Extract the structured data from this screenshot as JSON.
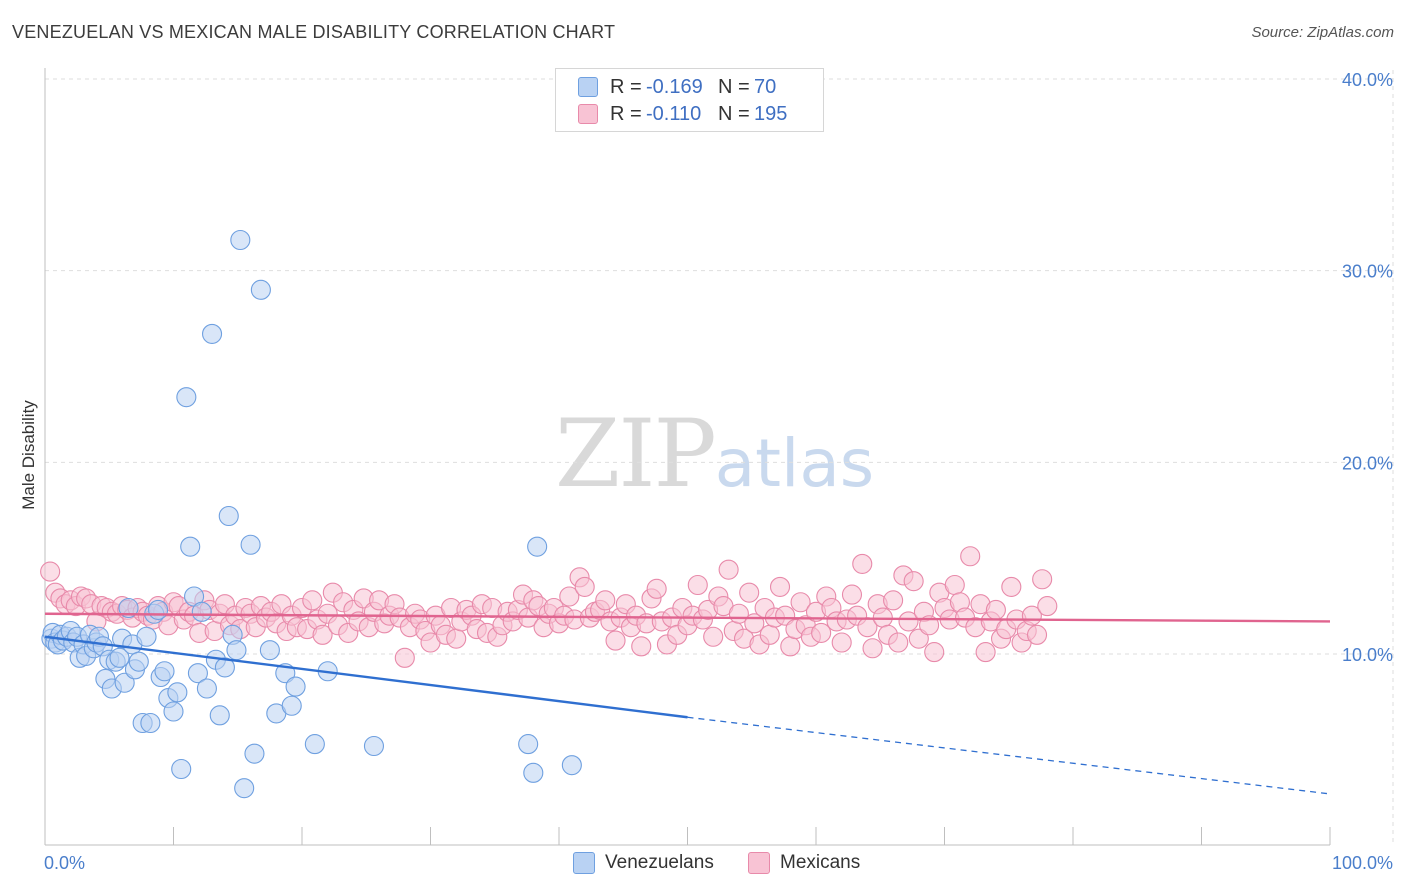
{
  "title": "VENEZUELAN VS MEXICAN MALE DISABILITY CORRELATION CHART",
  "source": "Source: ZipAtlas.com",
  "watermark": {
    "zip": "ZIP",
    "atlas": "atlas"
  },
  "legend": {
    "rows": [
      {
        "series": "Venezuelans",
        "r_label": "R =",
        "r_value": "-0.169",
        "n_label": "N =",
        "n_value": "70",
        "color": "#6fa0e0",
        "fill": "#b9d2f3"
      },
      {
        "series": "Mexicans",
        "r_label": "R =",
        "r_value": "-0.110",
        "n_label": "N =",
        "n_value": "195",
        "color": "#e88aaa",
        "fill": "#f8c3d4"
      }
    ]
  },
  "bottom_legend": [
    "Venezuelans",
    "Mexicans"
  ],
  "chart_data": {
    "type": "scatter",
    "title": "VENEZUELAN VS MEXICAN MALE DISABILITY CORRELATION CHART",
    "xlabel": "",
    "ylabel": "Male Disability",
    "xlim": [
      0,
      100
    ],
    "ylim": [
      0,
      40
    ],
    "y_ticks": [
      {
        "value": 10,
        "label": "10.0%"
      },
      {
        "value": 20,
        "label": "20.0%"
      },
      {
        "value": 30,
        "label": "30.0%"
      },
      {
        "value": 40,
        "label": "40.0%"
      }
    ],
    "x_tick_labels": [
      {
        "value": 0,
        "label": "0.0%"
      },
      {
        "value": 100,
        "label": "100.0%"
      }
    ],
    "grid": true,
    "legend_position": "top-center",
    "series": [
      {
        "name": "Venezuelans",
        "color": "#6fa0e0",
        "fill": "#b9d2f3",
        "trend": {
          "x0": 0,
          "y0": 10.9,
          "x1": 50,
          "y1": 6.7,
          "dash_to_x": 100,
          "dash_to_y": 2.7,
          "color": "#2f6fd0"
        },
        "points": [
          [
            0.5,
            10.8
          ],
          [
            0.6,
            11.1
          ],
          [
            0.8,
            10.6
          ],
          [
            1.0,
            10.5
          ],
          [
            1.2,
            11.0
          ],
          [
            1.4,
            10.7
          ],
          [
            1.7,
            10.9
          ],
          [
            2.0,
            11.2
          ],
          [
            2.2,
            10.6
          ],
          [
            2.5,
            10.9
          ],
          [
            2.7,
            9.8
          ],
          [
            3.0,
            10.5
          ],
          [
            3.2,
            9.9
          ],
          [
            3.5,
            11.0
          ],
          [
            3.8,
            10.3
          ],
          [
            4.0,
            10.6
          ],
          [
            4.2,
            10.9
          ],
          [
            4.5,
            10.4
          ],
          [
            4.7,
            8.7
          ],
          [
            5.0,
            9.7
          ],
          [
            5.2,
            8.2
          ],
          [
            5.5,
            9.6
          ],
          [
            5.8,
            9.8
          ],
          [
            6.0,
            10.8
          ],
          [
            6.2,
            8.5
          ],
          [
            6.5,
            12.4
          ],
          [
            6.8,
            10.5
          ],
          [
            7.0,
            9.2
          ],
          [
            7.3,
            9.6
          ],
          [
            7.6,
            6.4
          ],
          [
            7.9,
            10.9
          ],
          [
            8.2,
            6.4
          ],
          [
            8.5,
            12.1
          ],
          [
            8.8,
            12.3
          ],
          [
            9.0,
            8.8
          ],
          [
            9.3,
            9.1
          ],
          [
            9.6,
            7.7
          ],
          [
            10.0,
            7.0
          ],
          [
            10.3,
            8.0
          ],
          [
            10.6,
            4.0
          ],
          [
            11.0,
            23.4
          ],
          [
            11.3,
            15.6
          ],
          [
            11.6,
            13.0
          ],
          [
            11.9,
            9.0
          ],
          [
            12.2,
            12.2
          ],
          [
            12.6,
            8.2
          ],
          [
            13.0,
            26.7
          ],
          [
            13.3,
            9.7
          ],
          [
            13.6,
            6.8
          ],
          [
            14.0,
            9.3
          ],
          [
            14.3,
            17.2
          ],
          [
            14.6,
            11.0
          ],
          [
            14.9,
            10.2
          ],
          [
            15.2,
            31.6
          ],
          [
            15.5,
            3.0
          ],
          [
            16.0,
            15.7
          ],
          [
            16.3,
            4.8
          ],
          [
            16.8,
            29.0
          ],
          [
            17.5,
            10.2
          ],
          [
            18.0,
            6.9
          ],
          [
            18.7,
            9.0
          ],
          [
            19.2,
            7.3
          ],
          [
            19.5,
            8.3
          ],
          [
            21.0,
            5.3
          ],
          [
            22.0,
            9.1
          ],
          [
            25.6,
            5.2
          ],
          [
            37.6,
            5.3
          ],
          [
            38.0,
            3.8
          ],
          [
            38.3,
            15.6
          ],
          [
            41.0,
            4.2
          ]
        ]
      },
      {
        "name": "Mexicans",
        "color": "#e88aaa",
        "fill": "#f8c3d4",
        "trend": {
          "x0": 0,
          "y0": 12.1,
          "x1": 100,
          "y1": 11.7,
          "color": "#e0648f"
        },
        "points": [
          [
            0.4,
            14.3
          ],
          [
            0.8,
            13.2
          ],
          [
            1.2,
            12.9
          ],
          [
            1.6,
            12.6
          ],
          [
            2.0,
            12.8
          ],
          [
            2.4,
            12.5
          ],
          [
            2.8,
            13.0
          ],
          [
            3.2,
            12.9
          ],
          [
            3.6,
            12.6
          ],
          [
            4.0,
            11.7
          ],
          [
            4.4,
            12.5
          ],
          [
            4.8,
            12.4
          ],
          [
            5.2,
            12.2
          ],
          [
            5.6,
            12.1
          ],
          [
            6.0,
            12.5
          ],
          [
            6.4,
            12.3
          ],
          [
            6.8,
            11.9
          ],
          [
            7.2,
            12.4
          ],
          [
            7.6,
            12.2
          ],
          [
            8.0,
            12.0
          ],
          [
            8.4,
            11.8
          ],
          [
            8.8,
            12.5
          ],
          [
            9.2,
            12.2
          ],
          [
            9.6,
            11.5
          ],
          [
            10.0,
            12.7
          ],
          [
            10.4,
            12.5
          ],
          [
            10.8,
            11.8
          ],
          [
            11.2,
            12.2
          ],
          [
            11.6,
            12.0
          ],
          [
            12.0,
            11.1
          ],
          [
            12.4,
            12.8
          ],
          [
            12.8,
            12.3
          ],
          [
            13.2,
            11.2
          ],
          [
            13.6,
            12.1
          ],
          [
            14.0,
            12.6
          ],
          [
            14.4,
            11.5
          ],
          [
            14.8,
            12.0
          ],
          [
            15.2,
            11.3
          ],
          [
            15.6,
            12.4
          ],
          [
            16.0,
            12.1
          ],
          [
            16.4,
            11.4
          ],
          [
            16.8,
            12.5
          ],
          [
            17.2,
            11.9
          ],
          [
            17.6,
            12.2
          ],
          [
            18.0,
            11.6
          ],
          [
            18.4,
            12.6
          ],
          [
            18.8,
            11.2
          ],
          [
            19.2,
            12.0
          ],
          [
            19.6,
            11.4
          ],
          [
            20.0,
            12.4
          ],
          [
            20.4,
            11.3
          ],
          [
            20.8,
            12.8
          ],
          [
            21.2,
            11.8
          ],
          [
            21.6,
            11.0
          ],
          [
            22.0,
            12.1
          ],
          [
            22.4,
            13.2
          ],
          [
            22.8,
            11.5
          ],
          [
            23.2,
            12.7
          ],
          [
            23.6,
            11.1
          ],
          [
            24.0,
            12.3
          ],
          [
            24.4,
            11.7
          ],
          [
            24.8,
            12.9
          ],
          [
            25.2,
            11.4
          ],
          [
            25.6,
            12.2
          ],
          [
            26.0,
            12.8
          ],
          [
            26.4,
            11.6
          ],
          [
            26.8,
            12.0
          ],
          [
            27.2,
            12.6
          ],
          [
            27.6,
            11.9
          ],
          [
            28.0,
            9.8
          ],
          [
            28.4,
            11.4
          ],
          [
            28.8,
            12.1
          ],
          [
            29.2,
            11.8
          ],
          [
            29.6,
            11.2
          ],
          [
            30.0,
            10.6
          ],
          [
            30.4,
            12.0
          ],
          [
            30.8,
            11.5
          ],
          [
            31.2,
            11.0
          ],
          [
            31.6,
            12.4
          ],
          [
            32.0,
            10.8
          ],
          [
            32.4,
            11.7
          ],
          [
            32.8,
            12.3
          ],
          [
            33.2,
            12.0
          ],
          [
            33.6,
            11.3
          ],
          [
            34.0,
            12.6
          ],
          [
            34.4,
            11.1
          ],
          [
            34.8,
            12.4
          ],
          [
            35.2,
            10.9
          ],
          [
            35.6,
            11.5
          ],
          [
            36.0,
            12.2
          ],
          [
            36.4,
            11.7
          ],
          [
            36.8,
            12.3
          ],
          [
            37.2,
            13.1
          ],
          [
            37.6,
            11.9
          ],
          [
            38.0,
            12.8
          ],
          [
            38.4,
            12.5
          ],
          [
            38.8,
            11.4
          ],
          [
            39.2,
            12.1
          ],
          [
            39.6,
            12.4
          ],
          [
            40.0,
            11.6
          ],
          [
            40.4,
            12.0
          ],
          [
            40.8,
            13.0
          ],
          [
            41.2,
            11.8
          ],
          [
            41.6,
            14.0
          ],
          [
            42.0,
            13.5
          ],
          [
            42.4,
            11.9
          ],
          [
            42.8,
            12.2
          ],
          [
            43.2,
            12.3
          ],
          [
            43.6,
            12.8
          ],
          [
            44.0,
            11.7
          ],
          [
            44.4,
            10.7
          ],
          [
            44.8,
            11.9
          ],
          [
            45.2,
            12.6
          ],
          [
            45.6,
            11.4
          ],
          [
            46.0,
            12.0
          ],
          [
            46.4,
            10.4
          ],
          [
            46.8,
            11.6
          ],
          [
            47.2,
            12.9
          ],
          [
            47.6,
            13.4
          ],
          [
            48.0,
            11.7
          ],
          [
            48.4,
            10.5
          ],
          [
            48.8,
            11.9
          ],
          [
            49.2,
            11.0
          ],
          [
            49.6,
            12.4
          ],
          [
            50.0,
            11.5
          ],
          [
            50.4,
            12.0
          ],
          [
            50.8,
            13.6
          ],
          [
            51.2,
            11.8
          ],
          [
            51.6,
            12.3
          ],
          [
            52.0,
            10.9
          ],
          [
            52.4,
            13.0
          ],
          [
            52.8,
            12.5
          ],
          [
            53.2,
            14.4
          ],
          [
            53.6,
            11.2
          ],
          [
            54.0,
            12.1
          ],
          [
            54.4,
            10.8
          ],
          [
            54.8,
            13.2
          ],
          [
            55.2,
            11.6
          ],
          [
            55.6,
            10.5
          ],
          [
            56.0,
            12.4
          ],
          [
            56.4,
            11.0
          ],
          [
            56.8,
            11.9
          ],
          [
            57.2,
            13.5
          ],
          [
            57.6,
            12.0
          ],
          [
            58.0,
            10.4
          ],
          [
            58.4,
            11.3
          ],
          [
            58.8,
            12.7
          ],
          [
            59.2,
            11.5
          ],
          [
            59.6,
            10.9
          ],
          [
            60.0,
            12.2
          ],
          [
            60.4,
            11.1
          ],
          [
            60.8,
            13.0
          ],
          [
            61.2,
            12.4
          ],
          [
            61.6,
            11.7
          ],
          [
            62.0,
            10.6
          ],
          [
            62.4,
            11.8
          ],
          [
            62.8,
            13.1
          ],
          [
            63.2,
            12.0
          ],
          [
            63.6,
            14.7
          ],
          [
            64.0,
            11.4
          ],
          [
            64.4,
            10.3
          ],
          [
            64.8,
            12.6
          ],
          [
            65.2,
            11.9
          ],
          [
            65.6,
            11.0
          ],
          [
            66.0,
            12.8
          ],
          [
            66.4,
            10.6
          ],
          [
            66.8,
            14.1
          ],
          [
            67.2,
            11.7
          ],
          [
            67.6,
            13.8
          ],
          [
            68.0,
            10.8
          ],
          [
            68.4,
            12.2
          ],
          [
            68.8,
            11.5
          ],
          [
            69.2,
            10.1
          ],
          [
            69.6,
            13.2
          ],
          [
            70.0,
            12.4
          ],
          [
            70.4,
            11.8
          ],
          [
            70.8,
            13.6
          ],
          [
            71.2,
            12.7
          ],
          [
            71.6,
            11.9
          ],
          [
            72.0,
            15.1
          ],
          [
            72.4,
            11.4
          ],
          [
            72.8,
            12.6
          ],
          [
            73.2,
            10.1
          ],
          [
            73.6,
            11.7
          ],
          [
            74.0,
            12.3
          ],
          [
            74.4,
            10.8
          ],
          [
            74.8,
            11.3
          ],
          [
            75.2,
            13.5
          ],
          [
            75.6,
            11.8
          ],
          [
            76.0,
            10.6
          ],
          [
            76.4,
            11.2
          ],
          [
            76.8,
            12.0
          ],
          [
            77.2,
            11.0
          ],
          [
            77.6,
            13.9
          ],
          [
            78.0,
            12.5
          ]
        ]
      }
    ]
  }
}
